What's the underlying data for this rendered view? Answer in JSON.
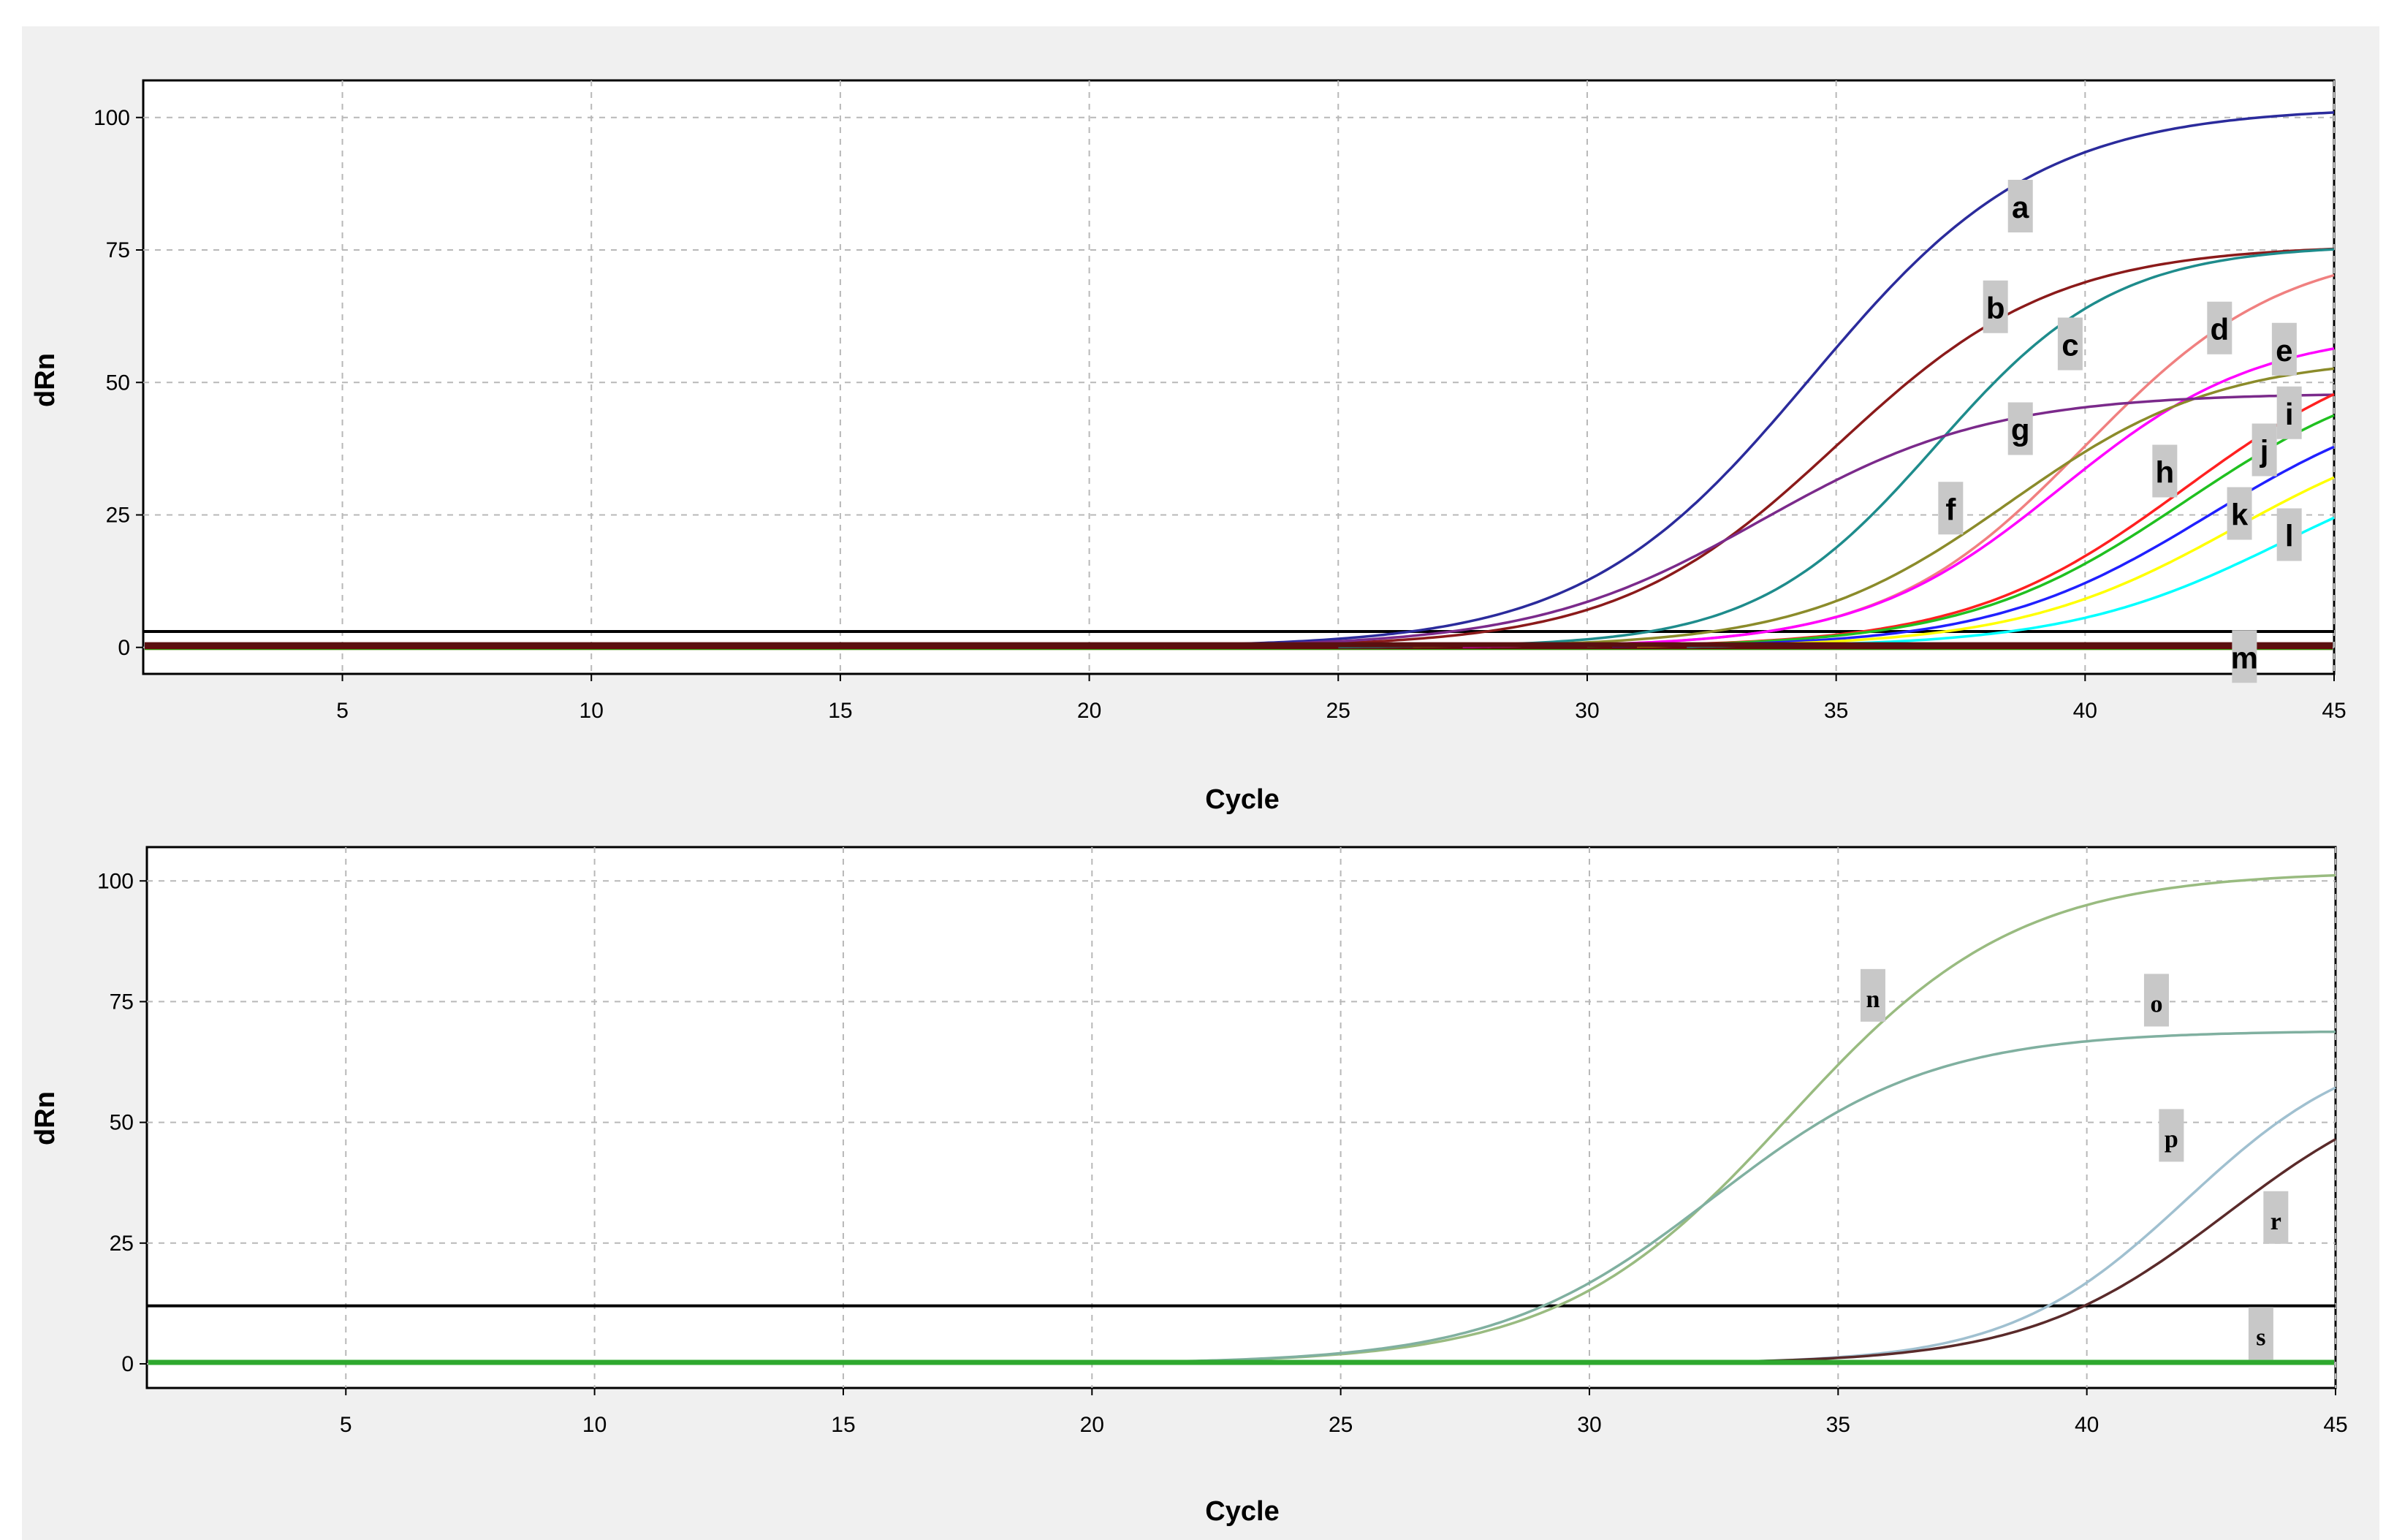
{
  "chart_data": [
    {
      "type": "line",
      "title": "",
      "xlabel": "Cycle",
      "ylabel": "dRn",
      "xlim": [
        1,
        45
      ],
      "ylim": [
        -5,
        107
      ],
      "xticks": [
        5,
        10,
        15,
        20,
        25,
        30,
        35,
        40,
        45
      ],
      "yticks": [
        0,
        25,
        50,
        75,
        100
      ],
      "grid": true,
      "threshold": 3,
      "baseline_colors": [
        "#1a1a80",
        "#ffd700",
        "#cc2222",
        "#00a0a0",
        "#ff00ff",
        "#00c000",
        "#800080",
        "#6b0000"
      ],
      "series": [
        {
          "name": "a",
          "color": "#2b2b9c",
          "plateau": 102,
          "midpoint": 34.5,
          "slope": 2.3,
          "label_at": [
            38.7,
            83
          ]
        },
        {
          "name": "b",
          "color": "#8b1a1a",
          "plateau": 76,
          "midpoint": 35.0,
          "slope": 2.2,
          "label_at": [
            38.2,
            64
          ]
        },
        {
          "name": "c",
          "color": "#1e8c8c",
          "plateau": 76,
          "midpoint": 37.0,
          "slope": 1.8,
          "label_at": [
            39.7,
            57
          ]
        },
        {
          "name": "d",
          "color": "#f08080",
          "plateau": 76,
          "midpoint": 40.0,
          "slope": 2.0,
          "label_at": [
            42.7,
            60
          ]
        },
        {
          "name": "e",
          "color": "#ff00ff",
          "plateau": 60,
          "midpoint": 39.5,
          "slope": 2.0,
          "label_at": [
            44.0,
            56
          ]
        },
        {
          "name": "f",
          "color": "#8b8b2a",
          "plateau": 55,
          "midpoint": 38.5,
          "slope": 2.1,
          "label_at": [
            37.3,
            26
          ]
        },
        {
          "name": "g",
          "color": "#7b2a8b",
          "plateau": 48,
          "midpoint": 33.5,
          "slope": 2.3,
          "label_at": [
            38.7,
            41
          ]
        },
        {
          "name": "h",
          "color": "#ff2020",
          "plateau": 60,
          "midpoint": 42.0,
          "slope": 2.2,
          "label_at": [
            41.6,
            33
          ]
        },
        {
          "name": "i",
          "color": "#20c020",
          "plateau": 55,
          "midpoint": 42.0,
          "slope": 2.2,
          "label_at": [
            44.1,
            44
          ]
        },
        {
          "name": "j",
          "color": "#2020ff",
          "plateau": 50,
          "midpoint": 42.5,
          "slope": 2.2,
          "label_at": [
            43.6,
            37
          ]
        },
        {
          "name": "k",
          "color": "#ffff00",
          "plateau": 45,
          "midpoint": 43.0,
          "slope": 2.2,
          "label_at": [
            43.1,
            25
          ]
        },
        {
          "name": "l",
          "color": "#00ffff",
          "plateau": 40,
          "midpoint": 44.0,
          "slope": 2.2,
          "label_at": [
            44.1,
            21
          ]
        },
        {
          "name": "m",
          "color": "#5a0f0f",
          "plateau": 0.5,
          "midpoint": 0,
          "slope": 1,
          "label_at": [
            43.2,
            -2
          ]
        }
      ]
    },
    {
      "type": "line",
      "title": "",
      "xlabel": "Cycle",
      "ylabel": "dRn",
      "xlim": [
        1,
        45
      ],
      "ylim": [
        -5,
        107
      ],
      "xticks": [
        5,
        10,
        15,
        20,
        25,
        30,
        35,
        40,
        45
      ],
      "yticks": [
        0,
        25,
        50,
        75,
        100
      ],
      "grid": true,
      "threshold": 12,
      "baseline_colors": [
        "#3aa03a"
      ],
      "series": [
        {
          "name": "n",
          "color": "#99bb80",
          "plateau": 102,
          "midpoint": 34.0,
          "slope": 2.3,
          "label_at": [
            35.7,
            76
          ]
        },
        {
          "name": "o",
          "color": "#80b0a0",
          "plateau": 69,
          "midpoint": 32.5,
          "slope": 2.2,
          "label_at": [
            41.4,
            75
          ]
        },
        {
          "name": "p",
          "color": "#a0c0d0",
          "plateau": 68,
          "midpoint": 42.0,
          "slope": 1.8,
          "label_at": [
            41.7,
            47
          ]
        },
        {
          "name": "r",
          "color": "#5a2a2a",
          "plateau": 62,
          "midpoint": 42.8,
          "slope": 2.0,
          "label_at": [
            43.8,
            30
          ]
        },
        {
          "name": "s",
          "color": "#2ea82e",
          "plateau": 0.3,
          "midpoint": 0,
          "slope": 1,
          "label_at": [
            43.5,
            6
          ]
        }
      ]
    }
  ]
}
